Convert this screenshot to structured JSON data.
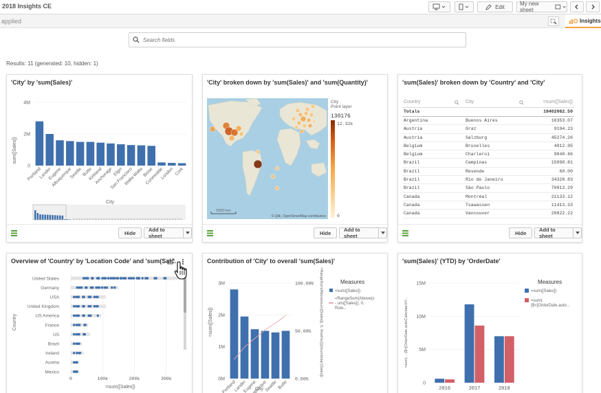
{
  "app": {
    "title": "2018 Insights CE",
    "edit_label": "Edit",
    "sheet_label": "My new sheet",
    "applied_label": "applied",
    "insights_label": "Insights"
  },
  "search": {
    "placeholder": "Search fields"
  },
  "results_text": "Results: 11 (generated: 10, hidden: 1)",
  "buttons": {
    "hide": "Hide",
    "add": "Add to sheet"
  },
  "colors": {
    "blue": "#3f70ad",
    "red": "#d35f67",
    "accent": "#f9a13d",
    "green": "#5aa13b"
  },
  "cards": {
    "c1": {
      "title": "'City' by 'sum(Sales)'"
    },
    "c2": {
      "title": "'City' broken down by 'sum(Sales)' and 'sum(Quantity)'"
    },
    "c3": {
      "title": "'sum(Sales)' broken down by 'Country' and 'City'"
    },
    "c4": {
      "title": "Overview of 'Country' by 'Location Code' and 'sum(Sal..."
    },
    "c5": {
      "title": "Contribution of 'City' to overall 'sum(Sales)'"
    },
    "c6": {
      "title": "'sum(Sales)' (YTD) by 'OrderDate'"
    }
  },
  "chart_data": [
    {
      "type": "bar",
      "categories": [
        "Portland",
        "Lander",
        "Eugene",
        "Albuquerque",
        "Seattle",
        "Butte",
        "Kirkland",
        "Anchorage",
        "Elgin",
        "San Francisco",
        "Walla Walla",
        "Boise",
        "Cunewalde",
        "London",
        "Cork"
      ],
      "values": [
        2.8,
        2.0,
        1.6,
        1.55,
        1.5,
        1.5,
        1.45,
        1.4,
        1.35,
        1.3,
        1.28,
        1.25,
        0.2,
        0.17,
        0.15
      ],
      "yticks": [
        "4M",
        "2M",
        "0"
      ],
      "ylim": [
        0,
        4
      ],
      "ylabel": "sum([Sales])",
      "xlabel": "City"
    },
    {
      "type": "map",
      "legend_title": "City",
      "legend_sub": "Point layer",
      "legend_max": "130176",
      "legend_mid": "12.32k",
      "legend_min": "0",
      "scale_label": "5000 km",
      "attribution": "© Qlik, OpenStreetMap contributors"
    },
    {
      "type": "table",
      "headers": [
        "Country",
        "City",
        "=sum([Sales])"
      ],
      "total_label": "Totals",
      "total_value": "19402062.50",
      "rows": [
        [
          "Argentina",
          "Buenos Aires",
          "10353.07"
        ],
        [
          "Austria",
          "Graz",
          "9194.23"
        ],
        [
          "Austria",
          "Salzburg",
          "45274.26"
        ],
        [
          "Belgium",
          "Bruxelles",
          "4912.05"
        ],
        [
          "Belgium",
          "Charleroi",
          "9040.66"
        ],
        [
          "Brazil",
          "Campinas",
          "15098.81"
        ],
        [
          "Brazil",
          "Resende",
          "60.00"
        ],
        [
          "Brazil",
          "Rio de Janeiro",
          "34328.83"
        ],
        [
          "Brazil",
          "São Paulo",
          "70813.29"
        ],
        [
          "Canada",
          "Montréal",
          "21133.12"
        ],
        [
          "Canada",
          "Tsawassen",
          "11413.33"
        ],
        [
          "Canada",
          "Vancouver",
          "20822.22"
        ]
      ]
    },
    {
      "type": "scatter",
      "categories": [
        "United States",
        "Germany",
        "USA",
        "United Kingdom",
        "US America",
        "France",
        "US",
        "Brazil",
        "Ireland",
        "Austria",
        "Mexico"
      ],
      "xticks": [
        "0",
        "100k",
        "200k",
        "300k"
      ],
      "xlim": [
        0,
        350
      ],
      "xlabel": "=sum([Sales])",
      "ylabel": "Country",
      "ranges": [
        [
          40,
          340
        ],
        [
          20,
          150
        ],
        [
          10,
          110
        ],
        [
          10,
          110
        ],
        [
          10,
          95
        ],
        [
          10,
          55
        ],
        [
          10,
          60
        ],
        [
          10,
          35
        ],
        [
          10,
          40
        ],
        [
          10,
          25
        ],
        [
          10,
          25
        ]
      ]
    },
    {
      "type": "bar",
      "categories": [
        "Portland",
        "Lander",
        "Eugene",
        "Albuquerque",
        "Seattle",
        "Butte"
      ],
      "values": [
        2.8,
        1.95,
        1.55,
        1.5,
        1.45,
        1.5
      ],
      "line_values": [
        20,
        33,
        42,
        51,
        58,
        66
      ],
      "yticks": [
        "3M",
        "2M",
        "1M",
        "0M"
      ],
      "ylim": [
        0,
        3
      ],
      "y2ticks": [
        "100.00%",
        "50.00%",
        "0.00%"
      ],
      "ylabel": "=sum([Sales])",
      "y2label": "=RangeSum(Above(sum([Sales]), 0, RowNo()))/sum(total [Sales])",
      "xlabel": "City",
      "legend_title": "Measures",
      "legend": [
        "=sum([Sales])",
        "=RangeSum(Above(s- um([Sales]), 0, Row..."
      ]
    },
    {
      "type": "bar",
      "categories": [
        "2016",
        "2017",
        "2018"
      ],
      "series": [
        {
          "name": "=sum([Sales])",
          "values": [
            0.6,
            11.8,
            7.0
          ]
        },
        {
          "name": "=sum({$<[OrderDate.auto...",
          "values": [
            0.5,
            8.6,
            7.0
          ]
        }
      ],
      "yticks": [
        "15M",
        "10M",
        "5M",
        "0"
      ],
      "ylim": [
        0,
        15
      ],
      "ylabel": "=sum(... {$<[OrderDate.autoCalendar.bY...",
      "legend_title": "Measures"
    }
  ]
}
